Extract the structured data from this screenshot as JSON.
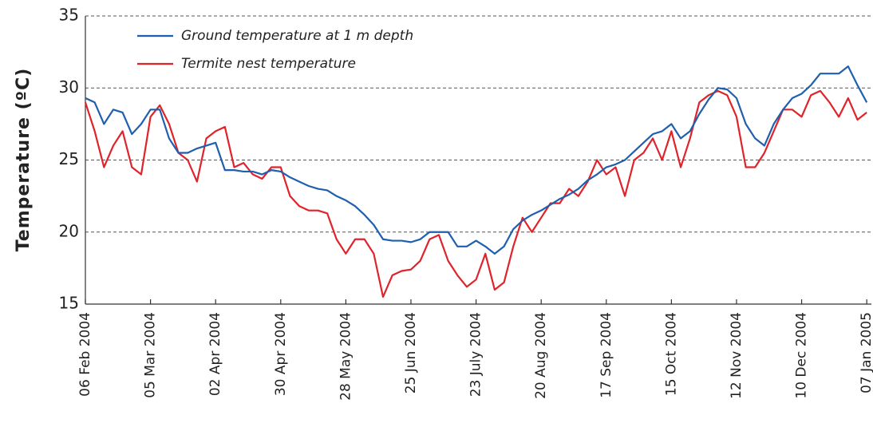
{
  "chart_data": {
    "type": "line",
    "y_label": "Temperature (ºC)",
    "x": [
      "2004-02-06",
      "2004-02-10",
      "2004-02-14",
      "2004-02-18",
      "2004-02-22",
      "2004-02-26",
      "2004-03-01",
      "2004-03-05",
      "2004-03-09",
      "2004-03-13",
      "2004-03-17",
      "2004-03-21",
      "2004-03-25",
      "2004-03-29",
      "2004-04-02",
      "2004-04-06",
      "2004-04-10",
      "2004-04-14",
      "2004-04-18",
      "2004-04-22",
      "2004-04-26",
      "2004-04-30",
      "2004-05-04",
      "2004-05-08",
      "2004-05-12",
      "2004-05-16",
      "2004-05-20",
      "2004-05-24",
      "2004-05-28",
      "2004-06-01",
      "2004-06-05",
      "2004-06-09",
      "2004-06-13",
      "2004-06-17",
      "2004-06-21",
      "2004-06-25",
      "2004-06-29",
      "2004-07-03",
      "2004-07-07",
      "2004-07-11",
      "2004-07-15",
      "2004-07-19",
      "2004-07-23",
      "2004-07-27",
      "2004-07-31",
      "2004-08-04",
      "2004-08-08",
      "2004-08-12",
      "2004-08-16",
      "2004-08-20",
      "2004-08-24",
      "2004-08-28",
      "2004-09-01",
      "2004-09-05",
      "2004-09-09",
      "2004-09-13",
      "2004-09-17",
      "2004-09-21",
      "2004-09-25",
      "2004-09-29",
      "2004-10-03",
      "2004-10-07",
      "2004-10-11",
      "2004-10-15",
      "2004-10-19",
      "2004-10-23",
      "2004-10-27",
      "2004-10-31",
      "2004-11-04",
      "2004-11-08",
      "2004-11-12",
      "2004-11-16",
      "2004-11-20",
      "2004-11-24",
      "2004-11-28",
      "2004-12-02",
      "2004-12-06",
      "2004-12-10",
      "2004-12-14",
      "2004-12-18",
      "2004-12-22",
      "2004-12-26",
      "2004-12-30",
      "2005-01-03",
      "2005-01-07"
    ],
    "series": [
      {
        "name": "Ground temperature at 1 m depth",
        "color": "#1f5fae",
        "values": [
          29.3,
          29.0,
          27.5,
          28.5,
          28.3,
          26.8,
          27.5,
          28.5,
          28.5,
          26.5,
          25.5,
          25.5,
          25.8,
          26.0,
          26.2,
          24.3,
          24.3,
          24.2,
          24.2,
          24.0,
          24.3,
          24.2,
          23.8,
          23.5,
          23.2,
          23.0,
          22.9,
          22.5,
          22.2,
          21.8,
          21.2,
          20.5,
          19.5,
          19.4,
          19.4,
          19.3,
          19.5,
          20,
          20,
          20,
          19,
          19,
          19.4,
          19,
          18.5,
          19,
          20.2,
          20.8,
          21.2,
          21.5,
          21.9,
          22.3,
          22.6,
          23,
          23.6,
          24,
          24.5,
          24.7,
          25,
          25.6,
          26.2,
          26.8,
          27,
          27.5,
          26.5,
          27,
          28.2,
          29.2,
          30,
          29.9,
          29.3,
          27.5,
          26.5,
          26,
          27.5,
          28.5,
          29.3,
          29.6,
          30.2,
          31,
          31,
          31,
          31.5,
          30.2,
          29
        ]
      },
      {
        "name": "Termite nest temperature",
        "color": "#e0232b",
        "values": [
          29,
          27,
          24.5,
          26,
          27,
          24.5,
          24,
          28,
          28.8,
          27.5,
          25.5,
          25,
          23.5,
          26.5,
          27,
          27.3,
          24.5,
          24.8,
          24,
          23.7,
          24.5,
          24.5,
          22.5,
          21.8,
          21.5,
          21.5,
          21.3,
          19.5,
          18.5,
          19.5,
          19.5,
          18.5,
          15.5,
          17,
          17.3,
          17.4,
          18,
          19.5,
          19.8,
          18,
          17,
          16.2,
          16.7,
          18.5,
          16,
          16.5,
          19,
          21,
          20,
          21,
          22,
          22,
          23,
          22.5,
          23.5,
          25,
          24,
          24.5,
          22.5,
          25,
          25.5,
          26.5,
          25,
          27,
          24.5,
          26.5,
          29,
          29.5,
          29.8,
          29.5,
          28,
          24.5,
          24.5,
          25.5,
          27,
          28.5,
          28.5,
          28,
          29.5,
          29.8,
          29,
          28,
          29.3,
          27.8,
          28.3
        ]
      }
    ],
    "xlim": [
      "2004-02-06",
      "2005-01-09"
    ],
    "xticks": [
      {
        "value": "2004-02-06",
        "label": "06 Feb 2004"
      },
      {
        "value": "2004-03-05",
        "label": "05 Mar 2004"
      },
      {
        "value": "2004-04-02",
        "label": "02 Apr 2004"
      },
      {
        "value": "2004-04-30",
        "label": "30 Apr 2004"
      },
      {
        "value": "2004-05-28",
        "label": "28 May 2004"
      },
      {
        "value": "2004-06-25",
        "label": "25 Jun 2004"
      },
      {
        "value": "2004-07-23",
        "label": "23 July 2004"
      },
      {
        "value": "2004-08-20",
        "label": "20 Aug 2004"
      },
      {
        "value": "2004-09-17",
        "label": "17 Sep 2004"
      },
      {
        "value": "2004-10-15",
        "label": "15 Oct 2004"
      },
      {
        "value": "2004-11-12",
        "label": "12 Nov 2004"
      },
      {
        "value": "2004-12-10",
        "label": "10 Dec 2004"
      },
      {
        "value": "2005-01-07",
        "label": "07 Jan 2005"
      }
    ],
    "ylim": [
      15,
      35
    ],
    "yticks": [
      15,
      20,
      25,
      30,
      35
    ],
    "grid": true,
    "legend": "upper left"
  }
}
